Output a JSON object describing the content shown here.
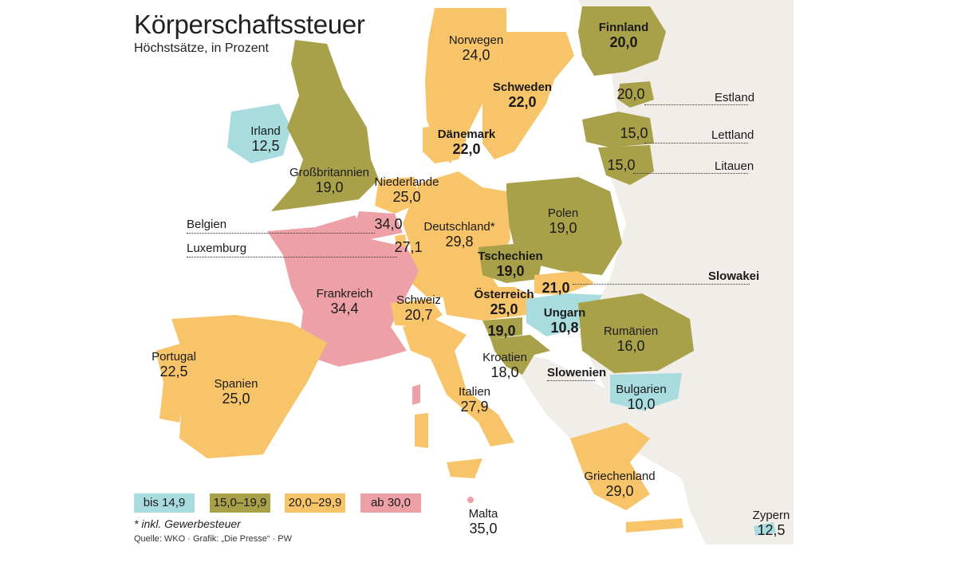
{
  "title": "Körperschaftssteuer",
  "subtitle": "Höchstsätze, in Prozent",
  "colors": {
    "bis_14_9": "#a8dcdf",
    "15_0_19_9": "#a9a04a",
    "20_0_29_9": "#f8c46a",
    "ab_30_0": "#eea0a7",
    "non_eu": "#f1ede9",
    "water": "#ffffff"
  },
  "countries": [
    {
      "name": "Finnland",
      "value": "20,0",
      "bold": true
    },
    {
      "name": "Norwegen",
      "value": "24,0",
      "bold": false
    },
    {
      "name": "Schweden",
      "value": "22,0",
      "bold": true
    },
    {
      "name": "Irland",
      "value": "12,5",
      "bold": false
    },
    {
      "name": "Dänemark",
      "value": "22,0",
      "bold": true
    },
    {
      "name": "Großbritannien",
      "value": "19,0",
      "bold": false
    },
    {
      "name": "Niederlande",
      "value": "25,0",
      "bold": false
    },
    {
      "name": "Polen",
      "value": "19,0",
      "bold": false
    },
    {
      "name": "Deutschland*",
      "value": "29,8",
      "bold": false
    },
    {
      "name": "Tschechien",
      "value": "19,0",
      "bold": true
    },
    {
      "name": "Frankreich",
      "value": "34,4",
      "bold": false
    },
    {
      "name": "Österreich",
      "value": "25,0",
      "bold": true
    },
    {
      "name": "Schweiz",
      "value": "20,7",
      "bold": false
    },
    {
      "name": "Ungarn",
      "value": "10,8",
      "bold": true
    },
    {
      "name": "Rumänien",
      "value": "16,0",
      "bold": false
    },
    {
      "name": "Kroatien",
      "value": "18,0",
      "bold": false
    },
    {
      "name": "Portugal",
      "value": "22,5",
      "bold": false
    },
    {
      "name": "Spanien",
      "value": "25,0",
      "bold": false
    },
    {
      "name": "Italien",
      "value": "27,9",
      "bold": false
    },
    {
      "name": "Bulgarien",
      "value": "10,0",
      "bold": false
    },
    {
      "name": "Griechenland",
      "value": "29,0",
      "bold": false
    },
    {
      "name": "Malta",
      "value": "35,0",
      "bold": false
    },
    {
      "name": "Zypern",
      "value": "12,5",
      "bold": false
    }
  ],
  "inline_values": {
    "estland": "20,0",
    "lettland": "15,0",
    "litauen": "15,0",
    "belgien": "34,0",
    "luxemburg": "27,1",
    "slowakei": "21,0",
    "slowenien": "19,0"
  },
  "side_labels": {
    "estland": "Estland",
    "lettland": "Lettland",
    "litauen": "Litauen",
    "belgien": "Belgien",
    "luxemburg": "Luxemburg",
    "slowakei": "Slowakei",
    "slowenien": "Slowenien"
  },
  "legend": [
    "bis 14,9",
    "15,0–19,9",
    "20,0–29,9",
    "ab 30,0"
  ],
  "footnote": "* inkl. Gewerbesteuer",
  "source": "Quelle: WKO · Grafik: „Die Presse“ · PW"
}
